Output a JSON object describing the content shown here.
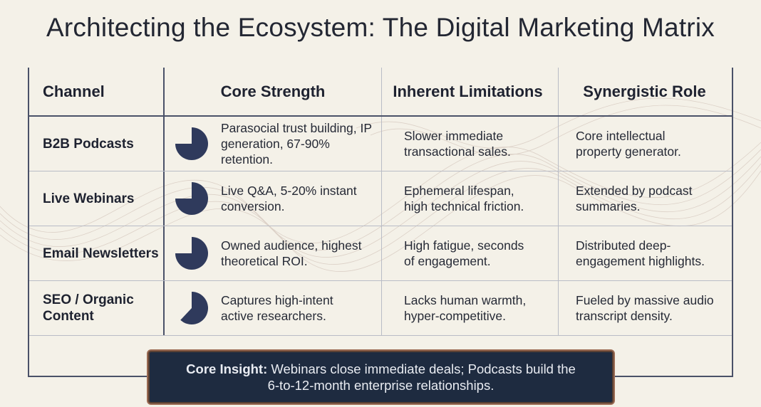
{
  "title": "Architecting the Ecosystem: The Digital Marketing Matrix",
  "columns": [
    "Channel",
    "Core Strength",
    "Inherent Limitations",
    "Synergistic Role"
  ],
  "rows": [
    {
      "channel": [
        "B2B Podcasts"
      ],
      "strength": [
        "Parasocial trust building, IP",
        "generation, 67-90% retention."
      ],
      "limitations": [
        "Slower immediate",
        "transactional sales."
      ],
      "role": [
        "Core intellectual",
        "property generator."
      ],
      "icon": "pie-chart-icon",
      "pie_fill_fraction": 0.75
    },
    {
      "channel": [
        "Live Webinars"
      ],
      "strength": [
        "Live Q&A, 5-20% instant",
        "conversion."
      ],
      "limitations": [
        "Ephemeral lifespan,",
        "high technical friction."
      ],
      "role": [
        "Extended by podcast",
        "summaries."
      ],
      "icon": "pie-chart-icon",
      "pie_fill_fraction": 0.75
    },
    {
      "channel": [
        "Email Newsletters"
      ],
      "strength": [
        "Owned audience, highest",
        "theoretical ROI."
      ],
      "limitations": [
        "High fatigue, seconds",
        "of engagement."
      ],
      "role": [
        "Distributed deep-",
        "engagement highlights."
      ],
      "icon": "pie-chart-icon",
      "pie_fill_fraction": 0.75
    },
    {
      "channel": [
        "SEO / Organic",
        "Content"
      ],
      "strength": [
        "Captures high-intent",
        "active researchers."
      ],
      "limitations": [
        "Lacks human warmth,",
        "hyper-competitive."
      ],
      "role": [
        "Fueled by massive audio",
        "transcript density."
      ],
      "icon": "pie-chart-icon",
      "pie_fill_fraction": 0.62
    }
  ],
  "insight": {
    "label": "Core Insight:",
    "line1_rest": " Webinars close immediate deals; Podcasts build the",
    "line2": "6-to-12-month enterprise relationships."
  },
  "colors": {
    "background": "#f4f1e8",
    "grid": "#4a5168",
    "pie_fill": "#2f3a5c",
    "insight_bg": "#1e2b40",
    "insight_border": "#9a6a52"
  }
}
